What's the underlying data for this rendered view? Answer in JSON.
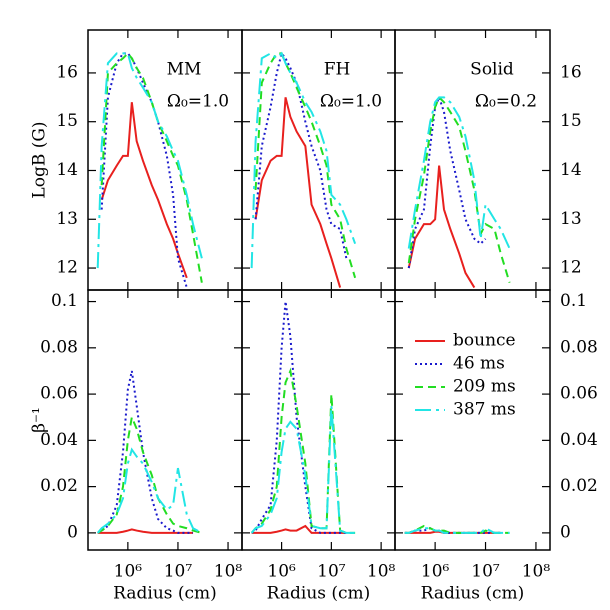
{
  "chart_data": [
    {
      "type": "line",
      "title": "MM",
      "annotation": "Ω₀=1.0",
      "ylabel": "LogB (G)",
      "xscale": "log",
      "x": [
        250000,
        300000,
        400000,
        600000,
        800000,
        1000000,
        1200000,
        1500000,
        2000000,
        3000000,
        4000000,
        6000000,
        8000000,
        10000000,
        15000000,
        20000000,
        30000000
      ],
      "xlim": [
        160000,
        190000000
      ],
      "xticks": [
        1000000,
        10000000,
        100000000
      ],
      "ylim": [
        11.55,
        16.88
      ],
      "yticks": [
        12,
        13,
        14,
        15,
        16
      ],
      "series": [
        {
          "color": "#e8201e",
          "linestyle": "solid",
          "values": [
            null,
            13.4,
            13.8,
            14.1,
            14.3,
            14.3,
            15.4,
            14.6,
            14.2,
            13.7,
            13.4,
            12.9,
            12.6,
            12.3,
            11.8,
            null,
            null
          ]
        },
        {
          "color": "#1a1acc",
          "linestyle": "dotted",
          "values": [
            null,
            13.2,
            15.5,
            16.2,
            16.4,
            16.4,
            16.3,
            16.1,
            15.8,
            15.4,
            15.0,
            14.3,
            13.5,
            12.2,
            11.6,
            null,
            null
          ]
        },
        {
          "color": "#22dd22",
          "linestyle": "dashed",
          "values": [
            null,
            13.7,
            16.0,
            16.2,
            16.3,
            16.4,
            16.3,
            16.1,
            15.9,
            15.4,
            15.0,
            14.6,
            14.3,
            14.1,
            13.4,
            12.7,
            11.7
          ]
        },
        {
          "color": "#22e5e5",
          "linestyle": "longdash",
          "values": [
            12.0,
            14.5,
            16.2,
            16.4,
            16.4,
            16.4,
            16.1,
            15.9,
            15.7,
            15.4,
            15.0,
            14.7,
            14.4,
            14.2,
            13.5,
            12.9,
            12.2
          ]
        }
      ]
    },
    {
      "type": "line",
      "title": "FH",
      "annotation": "Ω₀=1.0",
      "xscale": "log",
      "x": [
        250000,
        300000,
        400000,
        600000,
        800000,
        1000000,
        1200000,
        1500000,
        2000000,
        3000000,
        4000000,
        6000000,
        8000000,
        10000000,
        15000000,
        20000000,
        30000000
      ],
      "xlim": [
        160000,
        190000000
      ],
      "xticks": [
        1000000,
        10000000,
        100000000
      ],
      "ylim": [
        11.55,
        16.88
      ],
      "yticks": [
        12,
        13,
        14,
        15,
        16
      ],
      "series": [
        {
          "color": "#e8201e",
          "linestyle": "solid",
          "values": [
            null,
            13.0,
            13.8,
            14.2,
            14.3,
            14.3,
            15.5,
            15.1,
            14.8,
            14.5,
            13.3,
            12.9,
            12.5,
            12.2,
            11.6,
            null,
            null
          ]
        },
        {
          "color": "#1a1acc",
          "linestyle": "dotted",
          "values": [
            null,
            13.0,
            14.5,
            15.3,
            16.0,
            16.4,
            16.3,
            16.1,
            15.8,
            15.0,
            14.5,
            14.0,
            13.2,
            12.9,
            12.8,
            12.2,
            null
          ]
        },
        {
          "color": "#22dd22",
          "linestyle": "dashed",
          "values": [
            null,
            13.6,
            15.8,
            16.2,
            16.4,
            16.4,
            16.2,
            16.0,
            15.7,
            15.3,
            15.0,
            14.5,
            14.1,
            13.3,
            13.0,
            12.4,
            11.8
          ]
        },
        {
          "color": "#22e5e5",
          "linestyle": "longdash",
          "values": [
            12.0,
            14.6,
            16.3,
            16.4,
            16.3,
            16.4,
            16.2,
            16.0,
            15.8,
            15.4,
            15.2,
            14.8,
            14.4,
            13.5,
            13.3,
            13.0,
            12.5
          ]
        }
      ]
    },
    {
      "type": "line",
      "title": "Solid",
      "annotation": "Ω₀=0.2",
      "xscale": "log",
      "x": [
        250000,
        300000,
        400000,
        600000,
        800000,
        1000000,
        1200000,
        1500000,
        2000000,
        3000000,
        4000000,
        6000000,
        8000000,
        10000000,
        15000000,
        20000000,
        30000000
      ],
      "xlim": [
        160000,
        190000000
      ],
      "xticks": [
        1000000,
        10000000,
        100000000
      ],
      "ylim": [
        11.55,
        16.88
      ],
      "yticks": [
        12,
        13,
        14,
        15,
        16
      ],
      "series": [
        {
          "color": "#e8201e",
          "linestyle": "solid",
          "values": [
            null,
            12.0,
            12.6,
            12.9,
            12.9,
            13.0,
            14.1,
            13.2,
            12.8,
            12.3,
            11.9,
            11.6,
            null,
            null,
            null,
            null,
            null
          ]
        },
        {
          "color": "#1a1acc",
          "linestyle": "dotted",
          "values": [
            null,
            12.0,
            12.8,
            13.2,
            14.5,
            15.3,
            15.5,
            15.2,
            14.4,
            13.6,
            13.0,
            12.6,
            12.5,
            12.6,
            null,
            null,
            null
          ]
        },
        {
          "color": "#22dd22",
          "linestyle": "dashed",
          "values": [
            null,
            12.1,
            13.0,
            13.9,
            14.8,
            15.3,
            15.5,
            15.4,
            15.2,
            14.9,
            14.4,
            13.6,
            12.7,
            12.9,
            12.8,
            12.3,
            11.7
          ]
        },
        {
          "color": "#22e5e5",
          "linestyle": "longdash",
          "values": [
            null,
            12.4,
            13.2,
            14.2,
            15.0,
            15.4,
            15.5,
            15.5,
            15.4,
            15.1,
            14.7,
            13.8,
            12.6,
            13.3,
            13.0,
            12.8,
            12.4
          ]
        }
      ]
    },
    {
      "type": "line",
      "ylabel": "β⁻¹",
      "xlabel": "Radius (cm)",
      "xscale": "log",
      "x": [
        250000,
        300000,
        400000,
        600000,
        800000,
        1000000,
        1200000,
        1500000,
        2000000,
        3000000,
        4000000,
        6000000,
        8000000,
        10000000,
        15000000,
        20000000,
        30000000
      ],
      "xlim": [
        160000,
        190000000
      ],
      "xticks": [
        {
          "value": 1000000,
          "label": "10⁶"
        },
        {
          "value": 10000000,
          "label": "10⁷"
        },
        {
          "value": 100000000,
          "label": "10⁸"
        }
      ],
      "ylim": [
        -0.0074,
        0.105
      ],
      "yticks": [
        0,
        0.02,
        0.04,
        0.06,
        0.08,
        0.1
      ],
      "series": [
        {
          "color": "#e8201e",
          "linestyle": "solid",
          "values": [
            0,
            0,
            0,
            0,
            0.0005,
            0.001,
            0.0015,
            0.001,
            0.0005,
            0,
            0,
            0,
            0,
            0,
            0,
            0,
            null
          ]
        },
        {
          "color": "#1a1acc",
          "linestyle": "dotted",
          "values": [
            0,
            0.001,
            0.003,
            0.012,
            0.035,
            0.062,
            0.07,
            0.055,
            0.035,
            0.015,
            0.006,
            0.002,
            0.001,
            0,
            0,
            0,
            null
          ]
        },
        {
          "color": "#22dd22",
          "linestyle": "dashed",
          "values": [
            0,
            0.001,
            0.003,
            0.008,
            0.02,
            0.04,
            0.05,
            0.045,
            0.035,
            0.025,
            0.015,
            0.008,
            0.004,
            0.003,
            0.002,
            0.001,
            0
          ]
        },
        {
          "color": "#22e5e5",
          "linestyle": "longdash",
          "values": [
            0,
            0.002,
            0.004,
            0.008,
            0.015,
            0.03,
            0.036,
            0.033,
            0.03,
            0.022,
            0.015,
            0.01,
            0.012,
            0.028,
            0.008,
            0.002,
            0
          ]
        }
      ]
    },
    {
      "type": "line",
      "xlabel": "Radius (cm)",
      "xscale": "log",
      "x": [
        250000,
        300000,
        400000,
        600000,
        800000,
        1000000,
        1200000,
        1500000,
        2000000,
        3000000,
        4000000,
        6000000,
        8000000,
        10000000,
        15000000,
        20000000,
        30000000
      ],
      "xlim": [
        160000,
        190000000
      ],
      "xticks": [
        {
          "value": 1000000,
          "label": "10⁶"
        },
        {
          "value": 10000000,
          "label": "10⁷"
        },
        {
          "value": 100000000,
          "label": "10⁸"
        }
      ],
      "ylim": [
        -0.0074,
        0.105
      ],
      "yticks": [
        0,
        0.02,
        0.04,
        0.06,
        0.08,
        0.1
      ],
      "series": [
        {
          "color": "#e8201e",
          "linestyle": "solid",
          "values": [
            0,
            0,
            0,
            0,
            0.0005,
            0.001,
            0.0015,
            0.001,
            0.001,
            0.003,
            0,
            0,
            0,
            0,
            0,
            0,
            null
          ]
        },
        {
          "color": "#1a1acc",
          "linestyle": "dotted",
          "values": [
            0,
            0.001,
            0.006,
            0.012,
            0.04,
            0.08,
            0.1,
            0.085,
            0.05,
            0.02,
            0.002,
            0,
            0,
            0,
            0,
            0,
            null
          ]
        },
        {
          "color": "#22dd22",
          "linestyle": "dashed",
          "values": [
            0,
            0.002,
            0.004,
            0.01,
            0.02,
            0.05,
            0.065,
            0.07,
            0.055,
            0.03,
            0.003,
            0.002,
            0.002,
            0.06,
            0.001,
            0,
            0
          ]
        },
        {
          "color": "#22e5e5",
          "linestyle": "longdash",
          "values": [
            0,
            0.002,
            0.003,
            0.008,
            0.015,
            0.035,
            0.045,
            0.048,
            0.045,
            0.025,
            0.003,
            0.002,
            0.002,
            0.055,
            0.001,
            0,
            0
          ]
        }
      ]
    },
    {
      "type": "line",
      "xlabel": "Radius (cm)",
      "xscale": "log",
      "legend": "upper right",
      "x": [
        250000,
        300000,
        400000,
        600000,
        800000,
        1000000,
        1200000,
        1500000,
        2000000,
        3000000,
        4000000,
        6000000,
        8000000,
        10000000,
        15000000,
        20000000,
        30000000
      ],
      "xlim": [
        160000,
        190000000
      ],
      "xticks": [
        {
          "value": 1000000,
          "label": "10⁶"
        },
        {
          "value": 10000000,
          "label": "10⁷"
        },
        {
          "value": 100000000,
          "label": "10⁸"
        }
      ],
      "ylim": [
        -0.0074,
        0.105
      ],
      "yticks": [
        0,
        0.02,
        0.04,
        0.06,
        0.08,
        0.1
      ],
      "series": [
        {
          "name": "bounce",
          "color": "#e8201e",
          "linestyle": "solid",
          "values": [
            0,
            0,
            0,
            0,
            0,
            0.0005,
            0.0005,
            0,
            0,
            0,
            0,
            0,
            0,
            0,
            0,
            0,
            null
          ]
        },
        {
          "name": "46 ms",
          "color": "#1a1acc",
          "linestyle": "dotted",
          "values": [
            0,
            0,
            0.001,
            0.001,
            0.002,
            0.001,
            0.001,
            0,
            0,
            0,
            0,
            0,
            0,
            0,
            0,
            0,
            null
          ]
        },
        {
          "name": "209 ms",
          "color": "#22dd22",
          "linestyle": "dashed",
          "values": [
            0,
            0,
            0.001,
            0.003,
            0.002,
            0.001,
            0.001,
            0.001,
            0,
            0,
            0,
            0,
            0,
            0.001,
            0,
            0,
            0
          ]
        },
        {
          "name": "387 ms",
          "color": "#22e5e5",
          "linestyle": "longdash",
          "values": [
            0,
            0,
            0.001,
            0.002,
            0.002,
            0.001,
            0.001,
            0,
            0,
            0,
            0,
            0,
            0,
            0.002,
            0,
            0,
            0
          ]
        }
      ]
    }
  ]
}
